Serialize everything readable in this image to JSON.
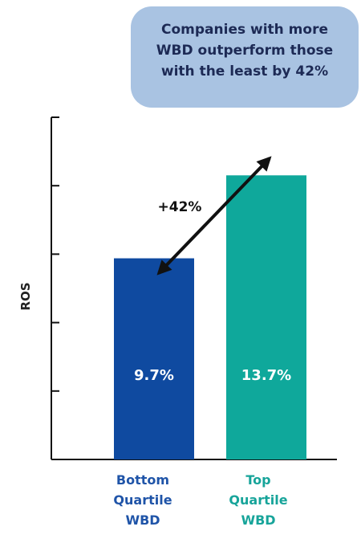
{
  "callout": {
    "text": "Companies with more\nWBD outperform those\nwith the least by 42%"
  },
  "chart_data": {
    "type": "bar",
    "categories": [
      "Bottom\nQuartile\nWBD",
      "Top\nQuartile\nWBD"
    ],
    "values": [
      9.7,
      13.7
    ],
    "value_labels": [
      "9.7%",
      "13.7%"
    ],
    "ylabel": "ROS",
    "ylim": [
      0,
      16.5
    ],
    "ytick_count": 5,
    "bar_colors": [
      "#0f4aa0",
      "#0fa89b"
    ],
    "category_label_colors": [
      "#1f54a8",
      "#17a49a"
    ],
    "annotation": {
      "text": "+42%",
      "type": "double-arrow"
    },
    "grid": false
  }
}
